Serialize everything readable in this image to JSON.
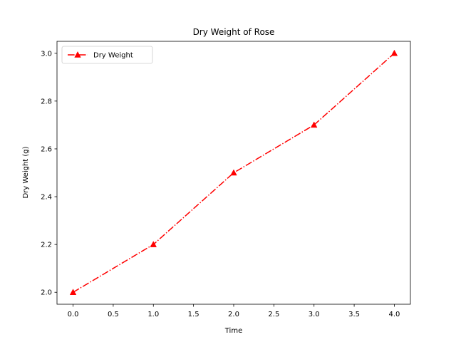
{
  "chart_data": {
    "type": "line",
    "title": "Dry Weight of Rose",
    "xlabel": "Time",
    "ylabel": "Dry Weight (g)",
    "x": [
      0,
      1,
      2,
      3,
      4
    ],
    "series": [
      {
        "name": "Dry Weight",
        "values": [
          2.0,
          2.2,
          2.5,
          2.7,
          3.0
        ],
        "color": "#ff0000",
        "line_style": "dash-dot",
        "marker": "triangle-up"
      }
    ],
    "xlim": [
      -0.2,
      4.2
    ],
    "ylim": [
      1.95,
      3.05
    ],
    "xticks": [
      0.0,
      0.5,
      1.0,
      1.5,
      2.0,
      2.5,
      3.0,
      3.5,
      4.0
    ],
    "xtick_labels": [
      "0.0",
      "0.5",
      "1.0",
      "1.5",
      "2.0",
      "2.5",
      "3.0",
      "3.5",
      "4.0"
    ],
    "yticks": [
      2.0,
      2.2,
      2.4,
      2.6,
      2.8,
      3.0
    ],
    "ytick_labels": [
      "2.0",
      "2.2",
      "2.4",
      "2.6",
      "2.8",
      "3.0"
    ],
    "grid": false,
    "legend_position": "top-left"
  }
}
